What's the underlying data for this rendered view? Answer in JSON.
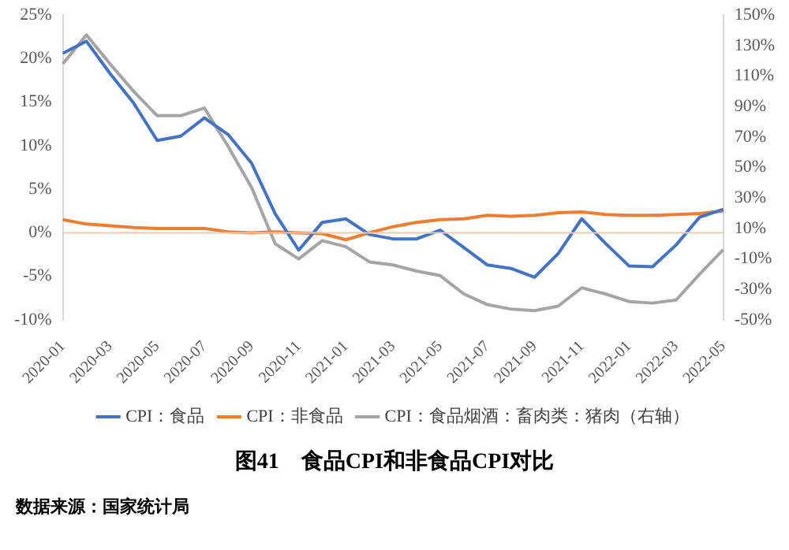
{
  "chart_data": {
    "type": "line",
    "title": "图41　食品CPI和非食品CPI对比",
    "categories": [
      "2020-01",
      null,
      "2020-03",
      null,
      "2020-05",
      null,
      "2020-07",
      null,
      "2020-09",
      null,
      "2020-11",
      null,
      "2021-01",
      null,
      "2021-03",
      null,
      "2021-05",
      null,
      "2021-07",
      null,
      "2021-09",
      null,
      "2021-11",
      null,
      "2022-01",
      null,
      "2022-03",
      null,
      "2022-05"
    ],
    "series": [
      {
        "name": "CPI：食品",
        "color": "#4472c4",
        "values": [
          20.6,
          22.0,
          18.3,
          14.9,
          10.6,
          11.1,
          13.2,
          11.3,
          8.0,
          2.2,
          -2.0,
          1.2,
          1.6,
          -0.2,
          -0.7,
          -0.7,
          0.3,
          -1.7,
          -3.7,
          -4.1,
          -5.1,
          -2.4,
          1.6,
          -1.2,
          -3.8,
          -3.9,
          -1.4,
          1.8,
          2.7
        ]
      },
      {
        "name": "CPI：非食品",
        "color": "#ed7d31",
        "values": [
          1.5,
          1.0,
          0.8,
          0.6,
          0.5,
          0.5,
          0.5,
          0.1,
          0.0,
          0.1,
          0.0,
          -0.1,
          -0.8,
          0.0,
          0.7,
          1.2,
          1.5,
          1.6,
          2.0,
          1.9,
          2.0,
          2.3,
          2.4,
          2.1,
          2.0,
          2.0,
          2.1,
          2.2,
          2.5
        ]
      },
      {
        "name": "CPI：食品烟酒：畜肉类：猪肉（右轴）",
        "color": "#a5a5a5",
        "axis": "y2",
        "values": [
          118,
          137,
          118,
          100,
          84,
          84,
          89,
          64,
          37,
          0,
          -10,
          2,
          -2,
          -12,
          -14,
          -18,
          -21,
          -33,
          -40,
          -43,
          -44,
          -41,
          -29,
          -33,
          -38,
          -39,
          -37,
          -20,
          -4
        ]
      }
    ],
    "ylim": [
      -10,
      25
    ],
    "yticks": [
      {
        "value": -10,
        "label": "-10%"
      },
      {
        "value": -5,
        "label": "-5%"
      },
      {
        "value": 0,
        "label": "0%"
      },
      {
        "value": 5,
        "label": "5%"
      },
      {
        "value": 10,
        "label": "10%"
      },
      {
        "value": 15,
        "label": "15%"
      },
      {
        "value": 20,
        "label": "20%"
      },
      {
        "value": 25,
        "label": "25%"
      }
    ],
    "y2lim": [
      -50,
      150
    ],
    "y2ticks": [
      {
        "value": -50,
        "label": "-50%"
      },
      {
        "value": -30,
        "label": "-30%"
      },
      {
        "value": -10,
        "label": "-10%"
      },
      {
        "value": 10,
        "label": "10%"
      },
      {
        "value": 30,
        "label": "30%"
      },
      {
        "value": 50,
        "label": "50%"
      },
      {
        "value": 70,
        "label": "70%"
      },
      {
        "value": 90,
        "label": "90%"
      },
      {
        "value": 110,
        "label": "110%"
      },
      {
        "value": 130,
        "label": "130%"
      },
      {
        "value": 150,
        "label": "150%"
      }
    ],
    "ref_lines": [
      {
        "axis": "y",
        "value": 0,
        "color": "#f4c7a8"
      }
    ],
    "legend": "bottom",
    "grid": false,
    "marker": "none",
    "line_style": "solid",
    "annotations": [
      "数据来源：国家统计局"
    ]
  }
}
